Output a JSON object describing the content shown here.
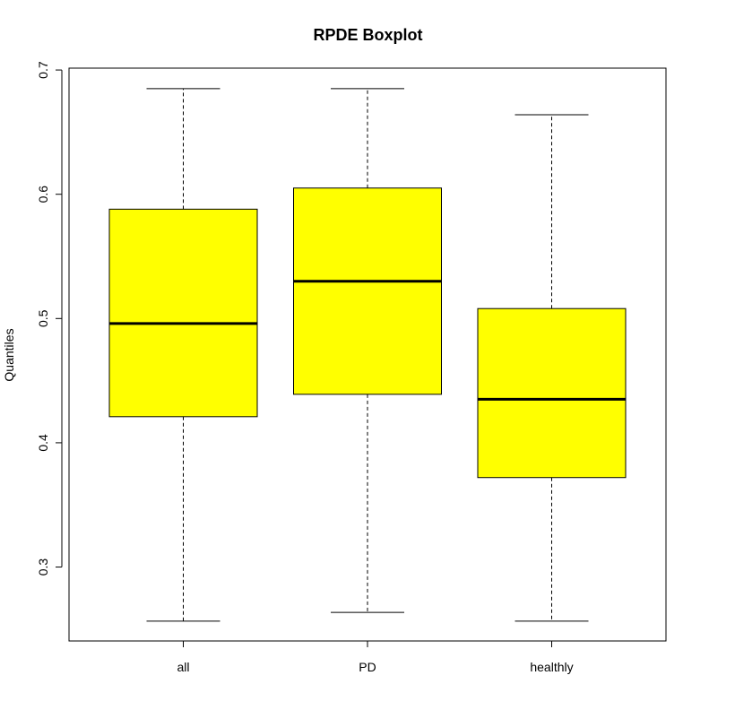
{
  "chart_data": {
    "type": "boxplot",
    "title": "RPDE Boxplot",
    "xlabel": "",
    "ylabel": "Quantiles",
    "categories": [
      "all",
      "PD",
      "healthly"
    ],
    "boxes": [
      {
        "min": 0.2565,
        "q1": 0.421,
        "median": 0.496,
        "q3": 0.588,
        "max": 0.685
      },
      {
        "min": 0.2635,
        "q1": 0.439,
        "median": 0.53,
        "q3": 0.605,
        "max": 0.685
      },
      {
        "min": 0.2565,
        "q1": 0.372,
        "median": 0.435,
        "q3": 0.508,
        "max": 0.664
      }
    ],
    "ylim": [
      0.2405,
      0.7015
    ],
    "yticks": [
      0.3,
      0.4,
      0.5,
      0.6,
      0.7
    ],
    "ytick_labels": [
      "0.3",
      "0.4",
      "0.5",
      "0.6",
      "0.7"
    ],
    "box_fill": "#ffff00",
    "grid": false,
    "legend": "none"
  }
}
